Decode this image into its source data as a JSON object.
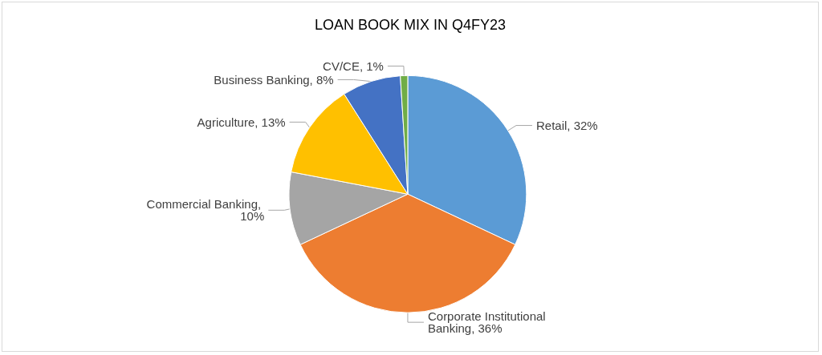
{
  "chart_data": {
    "type": "pie",
    "title": "LOAN BOOK MIX IN Q4FY23",
    "categories": [
      "Retail",
      "Corporate Institutional Banking",
      "Commercial Banking",
      "Agriculture",
      "Business Banking",
      "CV/CE"
    ],
    "values": [
      32,
      36,
      10,
      13,
      8,
      1
    ],
    "colors": [
      "#5b9bd5",
      "#ed7d31",
      "#a5a5a5",
      "#ffc000",
      "#4472c4",
      "#70ad47"
    ],
    "value_labels": [
      ", 32%",
      ", 36%",
      ", 10%",
      ", 13%",
      ", 8%",
      ", 1%"
    ],
    "legend": false
  }
}
